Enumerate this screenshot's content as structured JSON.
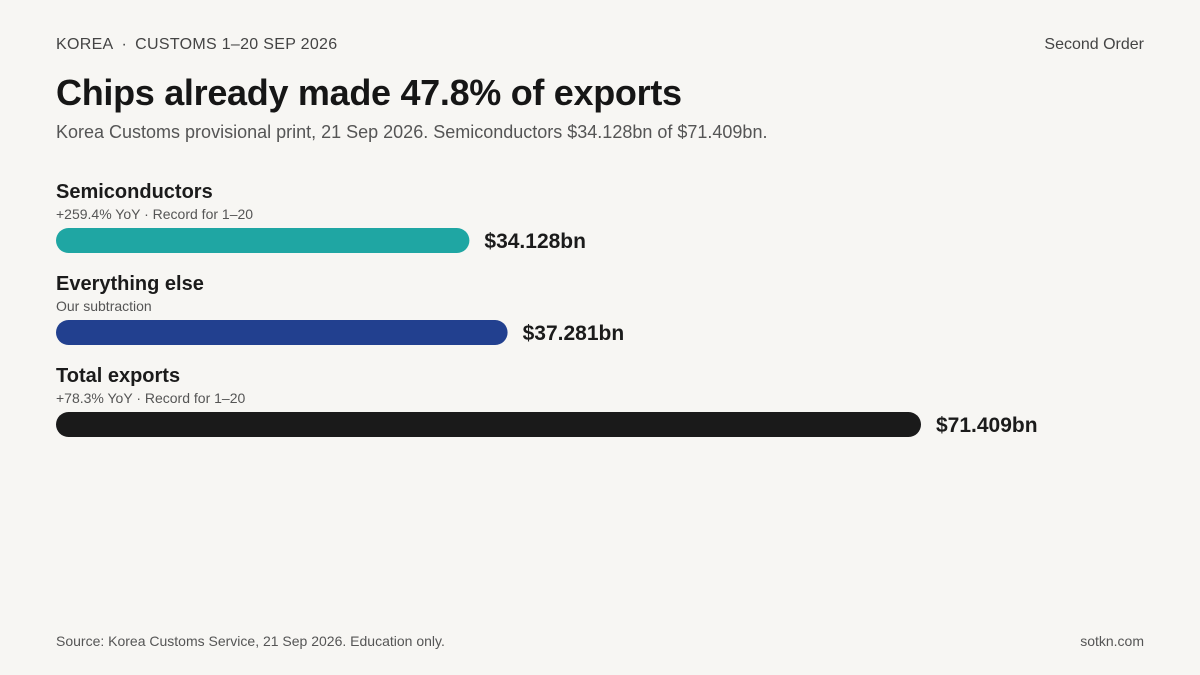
{
  "header": {
    "kicker_country": "KOREA",
    "kicker_separator": "·",
    "kicker_period": "CUSTOMS 1–20 SEP 2026",
    "brand": "Second Order"
  },
  "title": "Chips already made 47.8% of exports",
  "subtitle": "Korea Customs provisional print, 21 Sep 2026. Semiconductors $34.128bn of $71.409bn.",
  "footer": {
    "source": "Source: Korea Customs Service, 21 Sep 2026. Education only.",
    "site": "sotkn.com"
  },
  "chart_data": {
    "type": "bar",
    "orientation": "horizontal",
    "unit": "USD bn",
    "xlim": [
      0,
      71.409
    ],
    "grid": false,
    "rows": [
      {
        "label": "Semiconductors",
        "note": "+259.4% YoY · Record for 1–20",
        "value": 34.128,
        "value_label": "$34.128bn",
        "color": "#1fa6a3"
      },
      {
        "label": "Everything else",
        "note": "Our subtraction",
        "value": 37.281,
        "value_label": "$37.281bn",
        "color": "#22408f"
      },
      {
        "label": "Total exports",
        "note": "+78.3% YoY · Record for 1–20",
        "value": 71.409,
        "value_label": "$71.409bn",
        "color": "#1a1a1a"
      }
    ]
  }
}
